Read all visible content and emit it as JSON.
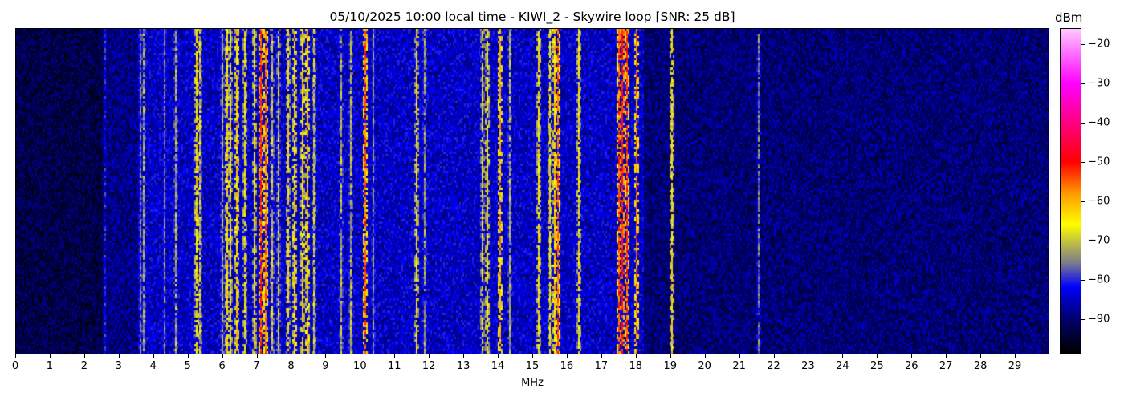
{
  "chart_data": {
    "type": "heatmap",
    "title": "05/10/2025 10:00 local time - KIWI_2 - Skywire loop [SNR: 25 dB]",
    "xlabel": "MHz",
    "xlim": [
      0,
      30
    ],
    "xticks": [
      "0",
      "1",
      "2",
      "3",
      "4",
      "5",
      "6",
      "7",
      "8",
      "9",
      "10",
      "11",
      "12",
      "13",
      "14",
      "15",
      "16",
      "17",
      "18",
      "19",
      "20",
      "21",
      "22",
      "23",
      "24",
      "25",
      "26",
      "27",
      "28",
      "29"
    ],
    "colorbar": {
      "label": "dBm",
      "range": [
        -99,
        -16
      ],
      "ticks": [
        "−20",
        "−30",
        "−40",
        "−50",
        "−60",
        "−70",
        "−80",
        "−90"
      ],
      "tick_values": [
        -20,
        -30,
        -40,
        -50,
        -60,
        -70,
        -80,
        -90
      ],
      "colorscale": [
        [
          -99,
          "#000000"
        ],
        [
          -90,
          "#00006e"
        ],
        [
          -82,
          "#0000ff"
        ],
        [
          -76,
          "#7a7a90"
        ],
        [
          -70,
          "#c8c83c"
        ],
        [
          -66,
          "#ffff00"
        ],
        [
          -58,
          "#ff9a00"
        ],
        [
          -50,
          "#ff0000"
        ],
        [
          -40,
          "#ff0080"
        ],
        [
          -30,
          "#ff00ff"
        ],
        [
          -16,
          "#ffc8ff"
        ]
      ]
    },
    "noise_floor": [
      {
        "from": 0,
        "to": 2.5,
        "dbm": -93
      },
      {
        "from": 2.5,
        "to": 3.5,
        "dbm": -89
      },
      {
        "from": 3.5,
        "to": 18.2,
        "dbm": -85
      },
      {
        "from": 18.2,
        "to": 30,
        "dbm": -90
      }
    ],
    "signals": [
      {
        "mhz": 2.55,
        "dbm": -82
      },
      {
        "mhz": 3.6,
        "dbm": -76
      },
      {
        "mhz": 3.7,
        "dbm": -73
      },
      {
        "mhz": 4.3,
        "dbm": -76
      },
      {
        "mhz": 4.6,
        "dbm": -72
      },
      {
        "mhz": 5.2,
        "dbm": -64
      },
      {
        "mhz": 5.3,
        "dbm": -70
      },
      {
        "mhz": 5.95,
        "dbm": -72
      },
      {
        "mhz": 6.1,
        "dbm": -64
      },
      {
        "mhz": 6.2,
        "dbm": -66
      },
      {
        "mhz": 6.4,
        "dbm": -62
      },
      {
        "mhz": 6.6,
        "dbm": -66
      },
      {
        "mhz": 6.9,
        "dbm": -65
      },
      {
        "mhz": 7.1,
        "dbm": -52
      },
      {
        "mhz": 7.2,
        "dbm": -56
      },
      {
        "mhz": 7.4,
        "dbm": -70
      },
      {
        "mhz": 7.6,
        "dbm": -70
      },
      {
        "mhz": 7.85,
        "dbm": -66
      },
      {
        "mhz": 8.05,
        "dbm": -62
      },
      {
        "mhz": 8.3,
        "dbm": -63
      },
      {
        "mhz": 8.42,
        "dbm": -61
      },
      {
        "mhz": 8.6,
        "dbm": -70
      },
      {
        "mhz": 9.4,
        "dbm": -72
      },
      {
        "mhz": 9.7,
        "dbm": -72
      },
      {
        "mhz": 10.1,
        "dbm": -55
      },
      {
        "mhz": 10.35,
        "dbm": -75
      },
      {
        "mhz": 11.6,
        "dbm": -65
      },
      {
        "mhz": 11.85,
        "dbm": -73
      },
      {
        "mhz": 13.5,
        "dbm": -68
      },
      {
        "mhz": 13.65,
        "dbm": -64
      },
      {
        "mhz": 14.0,
        "dbm": -60
      },
      {
        "mhz": 14.3,
        "dbm": -72
      },
      {
        "mhz": 15.15,
        "dbm": -65
      },
      {
        "mhz": 15.45,
        "dbm": -66
      },
      {
        "mhz": 15.6,
        "dbm": -62
      },
      {
        "mhz": 15.72,
        "dbm": -55
      },
      {
        "mhz": 16.3,
        "dbm": -66
      },
      {
        "mhz": 17.45,
        "dbm": -55
      },
      {
        "mhz": 17.55,
        "dbm": -50
      },
      {
        "mhz": 17.7,
        "dbm": -53
      },
      {
        "mhz": 18.0,
        "dbm": -56
      },
      {
        "mhz": 19.0,
        "dbm": -65
      },
      {
        "mhz": 21.5,
        "dbm": -76
      }
    ]
  }
}
